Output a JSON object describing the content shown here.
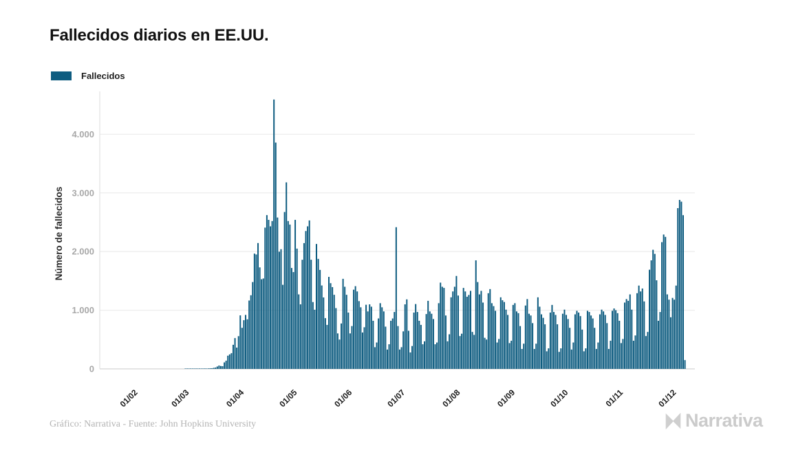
{
  "header": {
    "title": "Fallecidos diarios en EE.UU."
  },
  "legend": {
    "label": "Fallecidos"
  },
  "footer": {
    "credit": "Gráfico: Narrativa - Fuente: John Hopkins University",
    "logo_text": "Narrativa"
  },
  "chart_data": {
    "type": "bar",
    "title": "Fallecidos diarios en EE.UU.",
    "series_name": "Fallecidos",
    "ylabel": "Número de fallecidos",
    "xlabel": "",
    "grid": true,
    "legend_position": "top-left",
    "bar_color": "#0e5c80",
    "ylim": [
      0,
      4730
    ],
    "y_tick_values": [
      0,
      1000,
      2000,
      3000,
      4000
    ],
    "y_tick_labels": [
      "0",
      "1.000",
      "2.000",
      "3.000",
      "4.000"
    ],
    "x_tick_labels": [
      "01/02",
      "01/03",
      "01/04",
      "01/05",
      "01/06",
      "01/07",
      "01/08",
      "01/09",
      "01/10",
      "01/11",
      "01/12"
    ],
    "start_date": "2020-01-14",
    "values": [
      0,
      0,
      0,
      0,
      0,
      0,
      0,
      0,
      0,
      0,
      0,
      0,
      0,
      0,
      0,
      0,
      0,
      0,
      0,
      0,
      0,
      0,
      0,
      0,
      0,
      0,
      0,
      0,
      0,
      0,
      0,
      0,
      0,
      0,
      0,
      0,
      0,
      0,
      0,
      0,
      0,
      0,
      0,
      0,
      0,
      0,
      1,
      1,
      5,
      3,
      2,
      1,
      3,
      4,
      3,
      4,
      4,
      8,
      2,
      8,
      11,
      11,
      18,
      23,
      41,
      57,
      49,
      46,
      111,
      140,
      225,
      247,
      268,
      411,
      525,
      363,
      558,
      912,
      700,
      830,
      920,
      845,
      1165,
      1255,
      1480,
      1965,
      1950,
      2145,
      1730,
      1528,
      1541,
      2408,
      2621,
      2540,
      2430,
      2520,
      4591,
      3857,
      2580,
      1997,
      2040,
      1433,
      2674,
      3179,
      2520,
      2460,
      1720,
      1650,
      2540,
      2050,
      1270,
      1100,
      1860,
      2144,
      2350,
      2430,
      2530,
      1860,
      1139,
      1008,
      2129,
      1875,
      1687,
      1422,
      1218,
      865,
      750,
      1568,
      1461,
      1394,
      1263,
      1036,
      605,
      500,
      774,
      1535,
      1400,
      1263,
      960,
      605,
      730,
      1350,
      1410,
      1320,
      1155,
      1050,
      620,
      710,
      1093,
      980,
      1100,
      1060,
      820,
      370,
      450,
      860,
      1120,
      1050,
      980,
      720,
      330,
      420,
      820,
      860,
      970,
      2415,
      730,
      330,
      370,
      640,
      1100,
      1185,
      650,
      280,
      390,
      960,
      1105,
      970,
      820,
      750,
      420,
      470,
      935,
      1160,
      980,
      940,
      850,
      420,
      450,
      1120,
      1470,
      1400,
      1380,
      910,
      470,
      590,
      1220,
      1320,
      1400,
      1584,
      1250,
      560,
      600,
      1380,
      1320,
      1230,
      1260,
      1330,
      630,
      580,
      1850,
      1480,
      1270,
      1330,
      1130,
      530,
      500,
      1290,
      1360,
      1120,
      1070,
      990,
      450,
      510,
      1220,
      1170,
      1140,
      1010,
      920,
      440,
      480,
      1090,
      1120,
      980,
      950,
      730,
      340,
      430,
      1080,
      1190,
      940,
      910,
      780,
      340,
      430,
      1220,
      1060,
      930,
      870,
      760,
      300,
      350,
      960,
      1090,
      970,
      920,
      760,
      290,
      350,
      940,
      1010,
      920,
      850,
      700,
      330,
      450,
      930,
      990,
      960,
      900,
      670,
      300,
      350,
      990,
      970,
      910,
      860,
      700,
      340,
      450,
      930,
      1010,
      980,
      920,
      780,
      340,
      480,
      990,
      1030,
      1000,
      950,
      820,
      440,
      510,
      1130,
      1190,
      1160,
      1270,
      1010,
      480,
      570,
      1290,
      1420,
      1320,
      1370,
      1150,
      560,
      630,
      1690,
      1850,
      2030,
      1960,
      1510,
      820,
      970,
      2160,
      2290,
      2250,
      1270,
      1180,
      880,
      1210,
      1180,
      1420,
      2740,
      2880,
      2850,
      2620,
      150,
      0,
      0,
      0,
      0,
      0
    ]
  }
}
